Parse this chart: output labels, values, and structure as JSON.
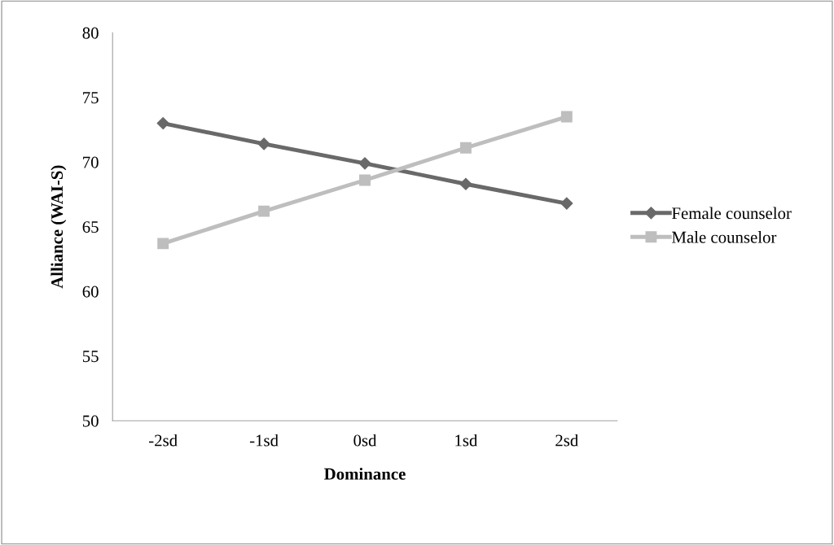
{
  "chart_data": {
    "type": "line",
    "xlabel": "Dominance",
    "ylabel": "Alliance (WAI-S)",
    "categories": [
      "-2sd",
      "-1sd",
      "0sd",
      "1sd",
      "2sd"
    ],
    "series": [
      {
        "name": "Female counselor",
        "color": "#696969",
        "marker": "diamond",
        "values": [
          73.0,
          71.4,
          69.9,
          68.3,
          66.8
        ]
      },
      {
        "name": "Male counselor",
        "color": "#bebebe",
        "marker": "square",
        "values": [
          63.7,
          66.2,
          68.6,
          71.1,
          73.5
        ]
      }
    ],
    "ylim": [
      50,
      80
    ],
    "yticks": [
      50,
      55,
      60,
      65,
      70,
      75,
      80
    ],
    "grid": false,
    "legend": "right"
  }
}
